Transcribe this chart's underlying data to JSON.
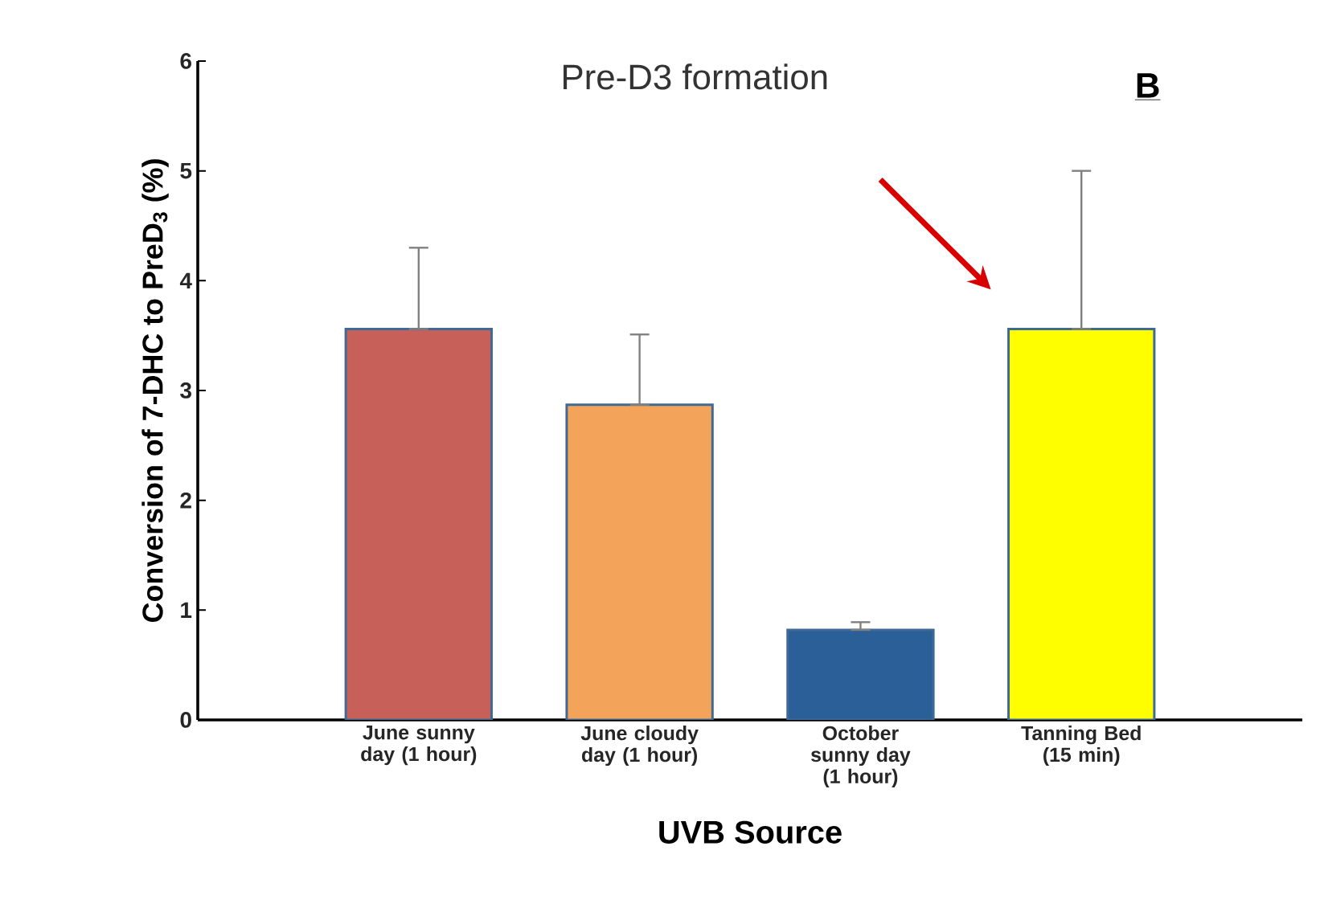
{
  "chart_data": {
    "type": "bar",
    "title": "Pre-D3 formation",
    "xlabel": "UVB Source",
    "ylabel": "Conversion of 7-DHC to PreD$_{3}$ (%)",
    "categories": [
      "June sunny day (1 hour)",
      "June cloudy day (1 hour)",
      "October sunny day (1 hour)",
      "Tanning Bed (15 min)"
    ],
    "values": [
      3.56,
      2.87,
      0.82,
      3.56
    ],
    "errors": [
      [
        3.56,
        4.3
      ],
      [
        2.87,
        3.51
      ],
      [
        0.82,
        0.89
      ],
      [
        3.56,
        5.0
      ]
    ],
    "colors": [
      "#c8605a",
      "#f4a45a",
      "#2b5f98",
      "#fffe00"
    ],
    "ylim": [
      0,
      6
    ],
    "yticks": [
      0,
      1,
      2,
      3,
      4,
      5,
      6
    ],
    "annotations": [
      "B"
    ]
  }
}
